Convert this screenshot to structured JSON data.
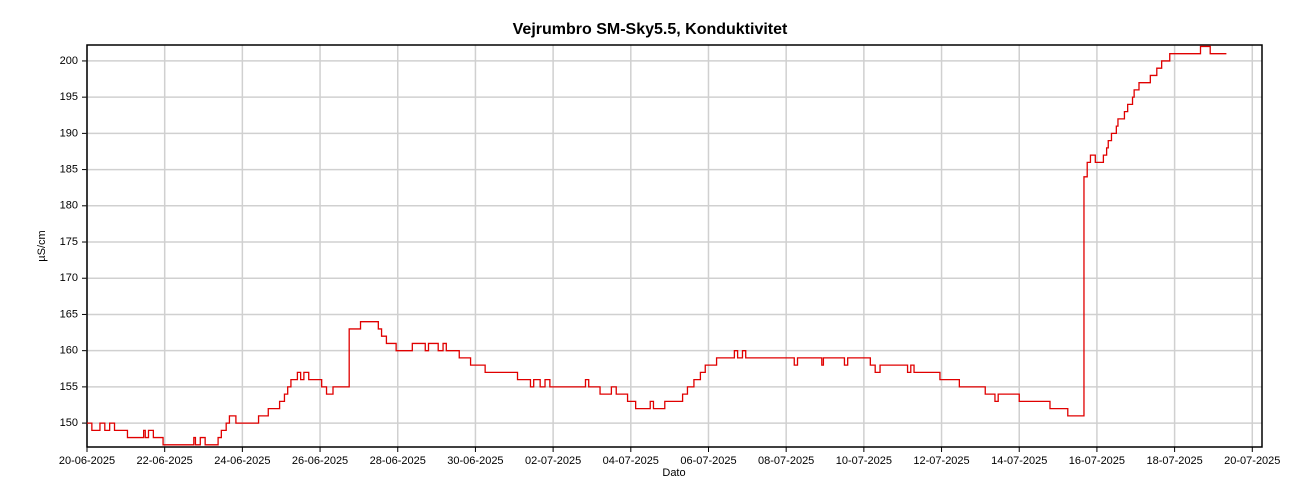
{
  "chart_data": {
    "type": "line",
    "title": "Vejrumbro SM-Sky5.5, Konduktivitet",
    "x_label": "Dato",
    "y_label": "µS/cm",
    "drawstyle": "steps-post",
    "grid": true,
    "xlim": [
      "2025-06-20T00:00",
      "2025-07-20T06:00"
    ],
    "xticks": [
      {
        "value": "2025-06-20T00:00",
        "label": "20-06-2025"
      },
      {
        "value": "2025-06-22T00:00",
        "label": "22-06-2025"
      },
      {
        "value": "2025-06-24T00:00",
        "label": "24-06-2025"
      },
      {
        "value": "2025-06-26T00:00",
        "label": "26-06-2025"
      },
      {
        "value": "2025-06-28T00:00",
        "label": "28-06-2025"
      },
      {
        "value": "2025-06-30T00:00",
        "label": "30-06-2025"
      },
      {
        "value": "2025-07-02T00:00",
        "label": "02-07-2025"
      },
      {
        "value": "2025-07-04T00:00",
        "label": "04-07-2025"
      },
      {
        "value": "2025-07-06T00:00",
        "label": "06-07-2025"
      },
      {
        "value": "2025-07-08T00:00",
        "label": "08-07-2025"
      },
      {
        "value": "2025-07-10T00:00",
        "label": "10-07-2025"
      },
      {
        "value": "2025-07-12T00:00",
        "label": "12-07-2025"
      },
      {
        "value": "2025-07-14T00:00",
        "label": "14-07-2025"
      },
      {
        "value": "2025-07-16T00:00",
        "label": "16-07-2025"
      },
      {
        "value": "2025-07-18T00:00",
        "label": "18-07-2025"
      },
      {
        "value": "2025-07-20T00:00",
        "label": "20-07-2025"
      }
    ],
    "ylim": [
      146.7,
      202.2
    ],
    "yticks": [
      150,
      155,
      160,
      165,
      170,
      175,
      180,
      185,
      190,
      195,
      200
    ],
    "x": [
      "2025-06-20T00:00",
      "2025-06-20T03:00",
      "2025-06-20T08:00",
      "2025-06-20T11:00",
      "2025-06-20T14:00",
      "2025-06-20T17:00",
      "2025-06-21T01:00",
      "2025-06-21T11:00",
      "2025-06-21T12:00",
      "2025-06-21T14:00",
      "2025-06-21T17:00",
      "2025-06-21T23:00",
      "2025-06-22T18:00",
      "2025-06-22T19:00",
      "2025-06-22T22:00",
      "2025-06-23T01:00",
      "2025-06-23T09:00",
      "2025-06-23T11:00",
      "2025-06-23T14:00",
      "2025-06-23T16:00",
      "2025-06-23T20:00",
      "2025-06-24T10:00",
      "2025-06-24T16:00",
      "2025-06-24T23:00",
      "2025-06-25T02:00",
      "2025-06-25T04:00",
      "2025-06-25T06:00",
      "2025-06-25T10:00",
      "2025-06-25T12:00",
      "2025-06-25T14:00",
      "2025-06-25T17:00",
      "2025-06-26T01:00",
      "2025-06-26T04:00",
      "2025-06-26T08:00",
      "2025-06-26T18:00",
      "2025-06-27T01:00",
      "2025-06-27T12:00",
      "2025-06-27T14:00",
      "2025-06-27T17:00",
      "2025-06-27T23:00",
      "2025-06-28T09:00",
      "2025-06-28T17:00",
      "2025-06-28T19:00",
      "2025-06-29T01:00",
      "2025-06-29T04:00",
      "2025-06-29T06:00",
      "2025-06-29T14:00",
      "2025-06-29T21:00",
      "2025-06-30T06:00",
      "2025-07-01T02:00",
      "2025-07-01T10:00",
      "2025-07-01T12:00",
      "2025-07-01T16:00",
      "2025-07-01T19:00",
      "2025-07-01T22:00",
      "2025-07-02T20:00",
      "2025-07-02T22:00",
      "2025-07-03T05:00",
      "2025-07-03T12:00",
      "2025-07-03T15:00",
      "2025-07-03T22:00",
      "2025-07-04T03:00",
      "2025-07-04T12:00",
      "2025-07-04T14:00",
      "2025-07-04T21:00",
      "2025-07-05T08:00",
      "2025-07-05T11:00",
      "2025-07-05T15:00",
      "2025-07-05T19:00",
      "2025-07-05T22:00",
      "2025-07-06T05:00",
      "2025-07-06T16:00",
      "2025-07-06T18:00",
      "2025-07-06T21:00",
      "2025-07-06T23:00",
      "2025-07-08T05:00",
      "2025-07-08T07:00",
      "2025-07-08T22:00",
      "2025-07-08T23:00",
      "2025-07-09T12:00",
      "2025-07-09T14:00",
      "2025-07-10T04:00",
      "2025-07-10T07:00",
      "2025-07-10T10:00",
      "2025-07-11T03:00",
      "2025-07-11T05:00",
      "2025-07-11T07:00",
      "2025-07-11T23:00",
      "2025-07-12T11:00",
      "2025-07-13T03:00",
      "2025-07-13T09:00",
      "2025-07-13T11:00",
      "2025-07-14T00:00",
      "2025-07-14T19:00",
      "2025-07-15T06:00",
      "2025-07-15T16:00",
      "2025-07-15T18:00",
      "2025-07-15T20:00",
      "2025-07-15T23:00",
      "2025-07-16T04:00",
      "2025-07-16T06:00",
      "2025-07-16T07:00",
      "2025-07-16T09:00",
      "2025-07-16T12:00",
      "2025-07-16T13:00",
      "2025-07-16T17:00",
      "2025-07-16T19:00",
      "2025-07-16T22:00",
      "2025-07-16T23:00",
      "2025-07-17T02:00",
      "2025-07-17T09:00",
      "2025-07-17T13:00",
      "2025-07-17T16:00",
      "2025-07-17T21:00",
      "2025-07-18T16:00",
      "2025-07-18T22:00",
      "2025-07-19T08:00"
    ],
    "series": [
      {
        "name": "Konduktivitet",
        "color": "#e00000",
        "values": [
          150,
          149,
          150,
          149,
          150,
          149,
          148,
          149,
          148,
          149,
          148,
          147,
          148,
          147,
          148,
          147,
          148,
          149,
          150,
          151,
          150,
          151,
          152,
          153,
          154,
          155,
          156,
          157,
          156,
          157,
          156,
          155,
          154,
          155,
          163,
          164,
          163,
          162,
          161,
          160,
          161,
          160,
          161,
          160,
          161,
          160,
          159,
          158,
          157,
          156,
          155,
          156,
          155,
          156,
          155,
          156,
          155,
          154,
          155,
          154,
          153,
          152,
          153,
          152,
          153,
          154,
          155,
          156,
          157,
          158,
          159,
          160,
          159,
          160,
          159,
          158,
          159,
          158,
          159,
          158,
          159,
          158,
          157,
          158,
          157,
          158,
          157,
          156,
          155,
          154,
          153,
          154,
          153,
          152,
          151,
          184,
          186,
          187,
          186,
          187,
          188,
          189,
          190,
          191,
          192,
          193,
          194,
          195,
          196,
          197,
          198,
          199,
          200,
          201,
          202,
          201,
          201
        ]
      }
    ]
  }
}
